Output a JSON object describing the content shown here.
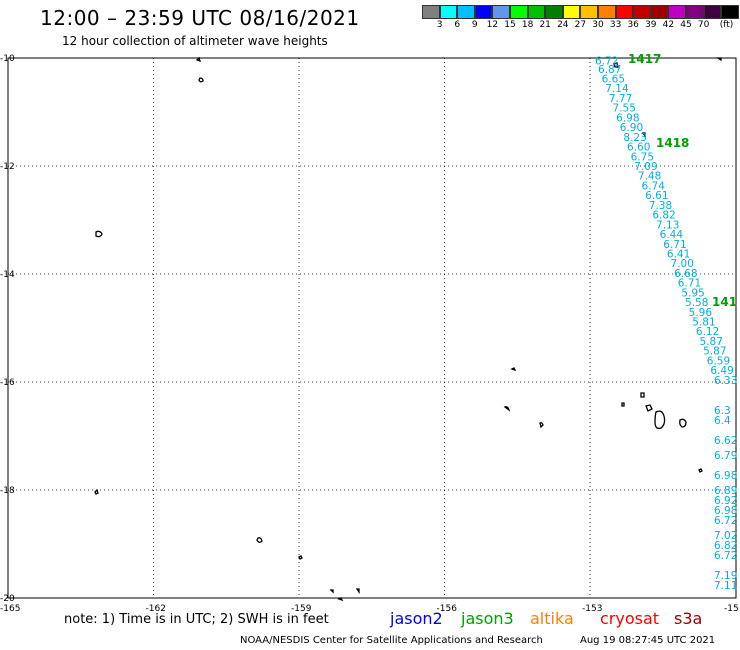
{
  "header": {
    "title": "12:00 – 23:59 UTC 08/16/2021",
    "subtitle": "12 hour collection of altimeter wave heights"
  },
  "legend": {
    "unit": "(ft)",
    "colors": [
      "#808080",
      "#00ffff",
      "#00bfff",
      "#0000ff",
      "#6495ed",
      "#00ff00",
      "#00c000",
      "#008000",
      "#ffff00",
      "#ffc000",
      "#ff8000",
      "#ff0000",
      "#c00000",
      "#a00000",
      "#c000c0",
      "#800080",
      "#400040",
      "#000000"
    ],
    "labels": [
      "3",
      "6",
      "9",
      "12",
      "15",
      "18",
      "21",
      "24",
      "27",
      "30",
      "33",
      "36",
      "39",
      "42",
      "45",
      "70"
    ]
  },
  "map": {
    "y_ticks": [
      "-10",
      "-12",
      "-14",
      "-16",
      "-18",
      "-20"
    ],
    "x_ticks": [
      "-162",
      "-159",
      "-156",
      "-153"
    ],
    "corner_left": "-165",
    "corner_right": "-15",
    "pass_labels": [
      "1417",
      "1418",
      "141"
    ],
    "track": [
      {
        "lat": -10.05,
        "v": "6.72"
      },
      {
        "lat": -10.2,
        "v": "6.87"
      },
      {
        "lat": -10.38,
        "v": "6.65"
      },
      {
        "lat": -10.56,
        "v": "7.14"
      },
      {
        "lat": -10.74,
        "v": "7.77"
      },
      {
        "lat": -10.92,
        "v": "7.55"
      },
      {
        "lat": -11.1,
        "v": "6.98"
      },
      {
        "lat": -11.28,
        "v": "6.90"
      },
      {
        "lat": -11.46,
        "v": "8.23"
      },
      {
        "lat": -11.64,
        "v": "6.60"
      },
      {
        "lat": -11.82,
        "v": "6.75"
      },
      {
        "lat": -12.0,
        "v": "7.09"
      },
      {
        "lat": -12.18,
        "v": "7.48"
      },
      {
        "lat": -12.36,
        "v": "6.74"
      },
      {
        "lat": -12.54,
        "v": "6.61"
      },
      {
        "lat": -12.72,
        "v": "7.38"
      },
      {
        "lat": -12.9,
        "v": "6.82"
      },
      {
        "lat": -13.08,
        "v": "7.13"
      },
      {
        "lat": -13.26,
        "v": "6.44"
      },
      {
        "lat": -13.44,
        "v": "6.71"
      },
      {
        "lat": -13.62,
        "v": "6.41"
      },
      {
        "lat": -13.8,
        "v": "7.00"
      },
      {
        "lat": -13.98,
        "v": "6.68"
      },
      {
        "lat": -14.16,
        "v": "6.71"
      },
      {
        "lat": -14.34,
        "v": "5.95"
      },
      {
        "lat": -14.52,
        "v": "5.58"
      },
      {
        "lat": -14.7,
        "v": "5.96"
      },
      {
        "lat": -14.88,
        "v": "5.81"
      },
      {
        "lat": -15.06,
        "v": "6.12"
      },
      {
        "lat": -15.24,
        "v": "5.87"
      },
      {
        "lat": -15.42,
        "v": "5.87"
      },
      {
        "lat": -15.6,
        "v": "6.59"
      },
      {
        "lat": -15.78,
        "v": "6.49"
      },
      {
        "lat": -15.96,
        "v": "6.33"
      }
    ],
    "right_column": [
      "6.3",
      "6.4",
      "6.62",
      "6.79",
      "6.98",
      "6.89",
      "6.92",
      "6.98",
      "6.72",
      "7.02",
      "6.82",
      "6.72",
      "7.19",
      "7.11"
    ]
  },
  "footer": {
    "note": "note: 1) Time is in UTC; 2) SWH is in feet",
    "satellites": [
      {
        "name": "jason2",
        "color": "#0000ff"
      },
      {
        "name": "jason3",
        "color": "#00a000"
      },
      {
        "name": "altika",
        "color": "#ff8000"
      },
      {
        "name": "cryosat",
        "color": "#ff0000"
      },
      {
        "name": "s3a",
        "color": "#a00000"
      }
    ],
    "credit": "NOAA/NESDIS Center for Satellite Applications and Research",
    "generated": "Aug 19 08:27:45 UTC 2021"
  }
}
